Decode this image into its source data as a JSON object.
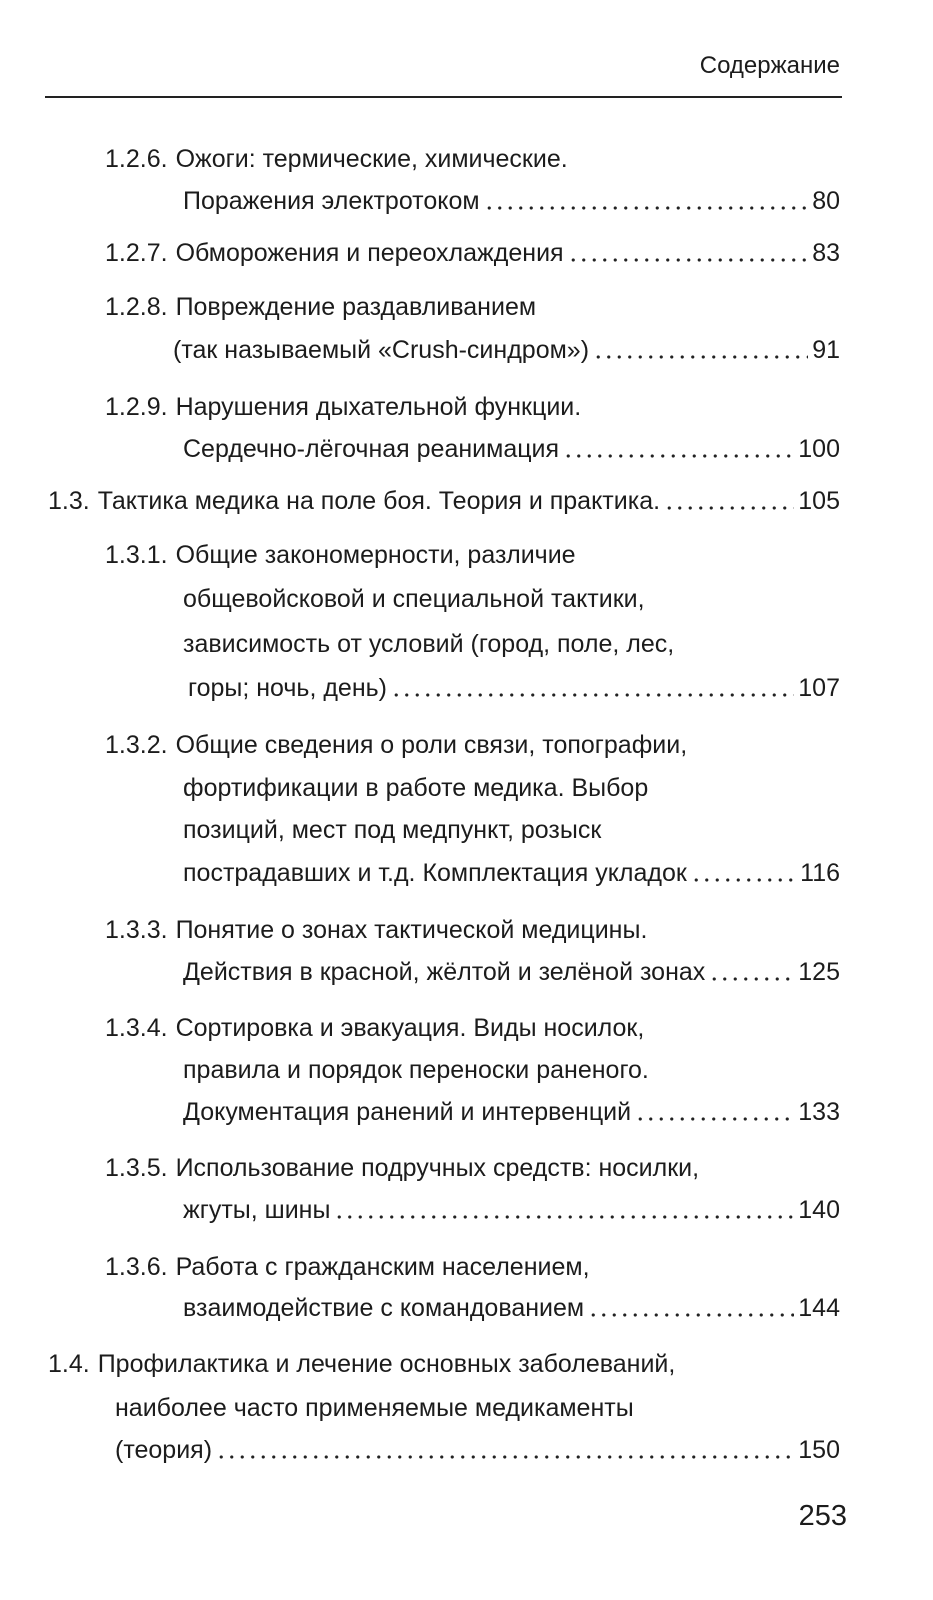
{
  "header": {
    "title": "Содержание"
  },
  "entries": [
    {
      "number": "1.2.6.",
      "lines": [
        "Ожоги: термические, химические.",
        "Поражения электротоком"
      ],
      "page": "80"
    },
    {
      "number": "1.2.7.",
      "lines": [
        "Обморожения и переохлаждения"
      ],
      "page": "83"
    },
    {
      "number": "1.2.8.",
      "lines": [
        "Повреждение раздавливанием",
        "(так называемый «Crush-синдром»)"
      ],
      "page": "91"
    },
    {
      "number": "1.2.9.",
      "lines": [
        "Нарушения дыхательной функции.",
        "Сердечно-лёгочная реанимация"
      ],
      "page": "100"
    },
    {
      "number": "1.3.",
      "lines": [
        "Тактика медика на поле боя. Теория и практика."
      ],
      "page": "105"
    },
    {
      "number": "1.3.1.",
      "lines": [
        "Общие закономерности, различие",
        "общевойсковой и специальной тактики,",
        "зависимость от условий (город, поле, лес,",
        "горы; ночь, день)"
      ],
      "page": "107"
    },
    {
      "number": "1.3.2.",
      "lines": [
        "Общие сведения о роли связи, топографии,",
        "фортификации в работе медика. Выбор",
        "позиций, мест под медпункт, розыск",
        "пострадавших и т.д. Комплектация укладок"
      ],
      "page": "116"
    },
    {
      "number": "1.3.3.",
      "lines": [
        "Понятие о зонах тактической медицины.",
        "Действия в красной, жёлтой и зелёной зонах"
      ],
      "page": "125"
    },
    {
      "number": "1.3.4.",
      "lines": [
        "Сортировка и эвакуация. Виды носилок,",
        "правила и порядок переноски раненого.",
        "Документация ранений и интервенций"
      ],
      "page": "133"
    },
    {
      "number": "1.3.5.",
      "lines": [
        "Использование подручных средств: носилки,",
        "жгуты, шины"
      ],
      "page": "140"
    },
    {
      "number": "1.3.6.",
      "lines": [
        "Работа с гражданским населением,",
        "взаимодействие с командованием"
      ],
      "page": "144"
    },
    {
      "number": "1.4.",
      "lines": [
        "Профилактика и лечение основных заболеваний,",
        "наиболее часто применяемые медикаменты",
        "(теория)"
      ],
      "page": "150"
    }
  ],
  "page_number": "253"
}
